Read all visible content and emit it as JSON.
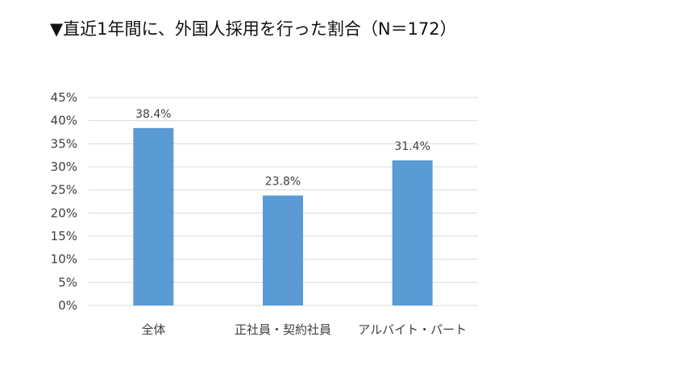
{
  "chart_data": {
    "type": "bar",
    "title": "▼直近1年間に、外国人採用を行った割合（N＝172）",
    "categories": [
      "全体",
      "正社員・契約社員",
      "アルバイト・パート"
    ],
    "values": [
      38.4,
      23.8,
      31.4
    ],
    "data_labels": [
      "38.4%",
      "23.8%",
      "31.4%"
    ],
    "y_ticks": [
      0,
      5,
      10,
      15,
      20,
      25,
      30,
      35,
      40,
      45
    ],
    "y_tick_labels": [
      "0%",
      "5%",
      "10%",
      "15%",
      "20%",
      "25%",
      "30%",
      "35%",
      "40%",
      "45%"
    ],
    "ylim": [
      0,
      45
    ],
    "grid": true,
    "legend": "none",
    "bar_color": "#5B9BD5",
    "grid_color": "#D9D9D9"
  }
}
